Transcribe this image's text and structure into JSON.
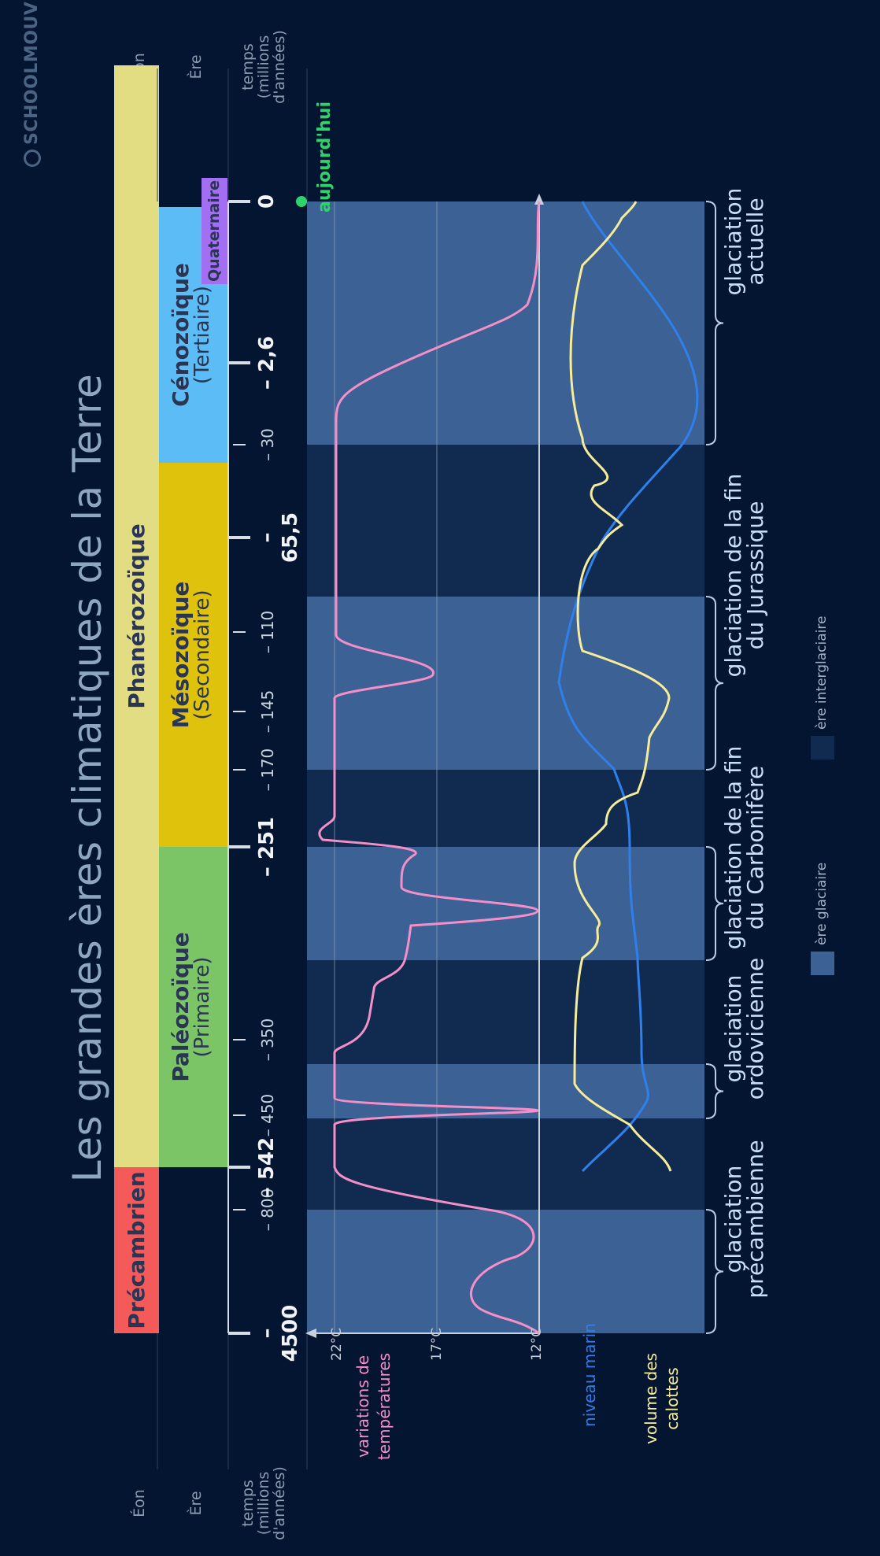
{
  "title": "Les grandes ères climatiques de la Terre",
  "row_headers": {
    "eon": "Éon",
    "era": "Ère",
    "time": [
      "temps",
      "(millions",
      "d'années)"
    ]
  },
  "eons": [
    {
      "label": "Précambrien",
      "color": "#f45a5a"
    },
    {
      "label": "Phanérozoïque",
      "color": "#e2dc83"
    }
  ],
  "eras": [
    {
      "title": "Paléozoïque",
      "subtitle": "(Primaire)",
      "color": "#7cc566"
    },
    {
      "title": "Mésozoïque",
      "subtitle": "(Secondaire)",
      "color": "#dfc20b"
    },
    {
      "title": "Cénozoïque",
      "subtitle": "(Tertiaire)",
      "color": "#5bbcf6"
    },
    {
      "title": "Quaternaire",
      "subtitle": "",
      "color": "#a26ef2"
    }
  ],
  "time_ticks": [
    {
      "label": "– 4500",
      "major": true
    },
    {
      "label": "– 800",
      "major": false
    },
    {
      "label": "– 542",
      "major": true
    },
    {
      "label": "– 450",
      "major": false
    },
    {
      "label": "– 350",
      "major": false
    },
    {
      "label": "– 251",
      "major": true
    },
    {
      "label": "– 170",
      "major": false
    },
    {
      "label": "– 145",
      "major": false
    },
    {
      "label": "– 110",
      "major": false
    },
    {
      "label": "– 65,5",
      "major": true
    },
    {
      "label": "– 30",
      "major": false
    },
    {
      "label": "– 2,6",
      "major": true
    },
    {
      "label": "0",
      "major": true
    }
  ],
  "today_label": "aujourd'hui",
  "temperature_ticks": [
    "22°C",
    "17°C",
    "12°C"
  ],
  "series_labels": {
    "temperature": [
      "variations de",
      "températures"
    ],
    "sea_level": [
      "niveau marin"
    ],
    "ice_volume": [
      "volume des",
      "calottes"
    ]
  },
  "colors": {
    "temperature": "#f58fc8",
    "sea_level": "#2f80ed",
    "ice_volume": "#f6ec9a",
    "glacial_band": "#3c6194",
    "interglacial_band": "#102a50",
    "background": "#031530"
  },
  "glaciations": [
    {
      "lines": [
        "glaciation",
        "précambienne"
      ]
    },
    {
      "lines": [
        "glaciation",
        "ordovicienne"
      ]
    },
    {
      "lines": [
        "glaciation de la fin",
        "du Carbonifère"
      ]
    },
    {
      "lines": [
        "glaciation de la fin",
        "du Jurassique"
      ]
    },
    {
      "lines": [
        "glaciation",
        "actuelle"
      ]
    }
  ],
  "legend": {
    "glacial": "ère glaciaire",
    "interglacial": "ère interglaciaire"
  },
  "brand": "SCHOOLMOUV"
}
